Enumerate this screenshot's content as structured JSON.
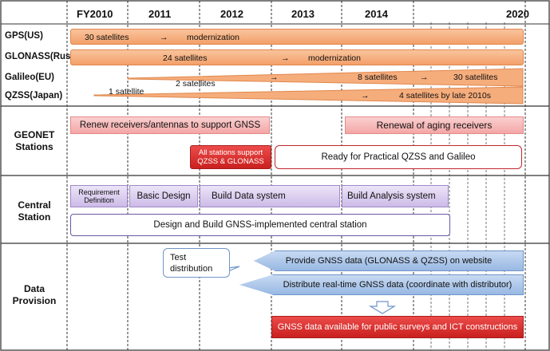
{
  "years": [
    "FY2010",
    "2011",
    "2012",
    "2013",
    "2014",
    "2020"
  ],
  "programs": {
    "gps": {
      "label": "GPS(US)",
      "text_a": "30 satellites",
      "arrow": "→",
      "text_b": "modernization"
    },
    "glonass": {
      "label": "GLONASS(Russia)",
      "text_a": "24 satellites",
      "arrow": "→",
      "text_b": "modernization"
    },
    "galileo": {
      "label": "Galileo(EU)",
      "text_a": "2 satellites",
      "arrow_a": "→",
      "text_b": "8 satellites",
      "arrow_b": "→",
      "text_c": "30 satellites"
    },
    "qzss": {
      "label": "QZSS(Japan)",
      "text_a": "1 satellite",
      "arrow": "→",
      "text_b": "4  satellites by late 2010s"
    }
  },
  "sections": {
    "geonet": "GEONET Stations",
    "central": "Central Station",
    "data": "Data Provision"
  },
  "geonet": {
    "renew_receivers": "Renew receivers/antennas to support GNSS",
    "renew_aging": "Renewal of aging receivers",
    "all_stations": "All stations support QZSS & GLONASS",
    "ready": "Ready for Practical QZSS and Galileo"
  },
  "central": {
    "requirement": "Requirement Definition",
    "basic_design": "Basic Design",
    "build_data": "Build  Data system",
    "build_analysis": "Build Analysis system",
    "design_build": "Design and Build GNSS-implemented central station"
  },
  "data_provision": {
    "test_distribution": "Test distribution",
    "provide": "Provide GNSS data (GLONASS & QZSS) on website",
    "distribute": "Distribute real-time GNSS data (coordinate with distributor)",
    "available": "GNSS data available for public surveys and ICT constructions"
  },
  "colors": {
    "orange": "#f3a06a",
    "pink": "#f4a6a6",
    "red": "#d42a28",
    "purple": "#cdbbe8",
    "blue": "#98b8e3",
    "outline_red": "#c0282e"
  }
}
